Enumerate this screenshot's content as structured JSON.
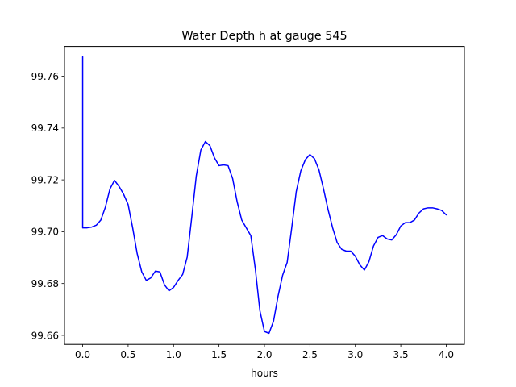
{
  "chart_data": {
    "type": "line",
    "title": "Water Depth h at gauge 545",
    "xlabel": "hours",
    "ylabel": "",
    "xlim": [
      -0.2,
      4.2
    ],
    "ylim": [
      99.6565,
      99.7715
    ],
    "xticks": [
      0.0,
      0.5,
      1.0,
      1.5,
      2.0,
      2.5,
      3.0,
      3.5,
      4.0
    ],
    "xtick_labels": [
      "0.0",
      "0.5",
      "1.0",
      "1.5",
      "2.0",
      "2.5",
      "3.0",
      "3.5",
      "4.0"
    ],
    "yticks": [
      99.66,
      99.68,
      99.7,
      99.72,
      99.74,
      99.76
    ],
    "ytick_labels": [
      "99.66",
      "99.68",
      "99.70",
      "99.72",
      "99.74",
      "99.76"
    ],
    "grid": false,
    "legend": "none",
    "series": [
      {
        "color": "#0000ff",
        "x": [
          0.0,
          0.0,
          0.0,
          0.05,
          0.1,
          0.15,
          0.2,
          0.25,
          0.3,
          0.35,
          0.4,
          0.45,
          0.5,
          0.55,
          0.6,
          0.65,
          0.7,
          0.75,
          0.8,
          0.85,
          0.9,
          0.95,
          1.0,
          1.05,
          1.1,
          1.15,
          1.2,
          1.25,
          1.3,
          1.35,
          1.4,
          1.45,
          1.5,
          1.55,
          1.6,
          1.65,
          1.7,
          1.75,
          1.8,
          1.85,
          1.9,
          1.95,
          2.0,
          2.05,
          2.1,
          2.15,
          2.2,
          2.25,
          2.3,
          2.35,
          2.4,
          2.45,
          2.5,
          2.55,
          2.6,
          2.65,
          2.7,
          2.75,
          2.8,
          2.85,
          2.9,
          2.95,
          3.0,
          3.05,
          3.1,
          3.15,
          3.2,
          3.25,
          3.3,
          3.35,
          3.4,
          3.45,
          3.5,
          3.55,
          3.6,
          3.65,
          3.7,
          3.75,
          3.8,
          3.85,
          3.9,
          3.95,
          4.0
        ],
        "y": [
          99.7675,
          99.7675,
          99.7015,
          99.7015,
          99.7018,
          99.7025,
          99.7045,
          99.7095,
          99.7165,
          99.7198,
          99.7175,
          99.7145,
          99.7105,
          99.7015,
          99.6915,
          99.6845,
          99.6812,
          99.6822,
          99.6848,
          99.6845,
          99.6795,
          99.6772,
          99.6785,
          99.6812,
          99.6835,
          99.6902,
          99.7055,
          99.7215,
          99.7315,
          99.7348,
          99.7332,
          99.7285,
          99.7255,
          99.7258,
          99.7255,
          99.7205,
          99.7115,
          99.7045,
          99.7015,
          99.6985,
          99.6855,
          99.6695,
          99.6615,
          99.6608,
          99.6655,
          99.6752,
          99.6832,
          99.6882,
          99.7015,
          99.7155,
          99.7235,
          99.7278,
          99.7298,
          99.7282,
          99.7238,
          99.7165,
          99.7085,
          99.7015,
          99.6958,
          99.6932,
          99.6925,
          99.6925,
          99.6905,
          99.6872,
          99.6852,
          99.6885,
          99.6945,
          99.6978,
          99.6985,
          99.6972,
          99.6968,
          99.6988,
          99.7022,
          99.7035,
          99.7035,
          99.7045,
          99.7072,
          99.7088,
          99.7092,
          99.7092,
          99.7088,
          99.7082,
          99.7065
        ]
      }
    ]
  }
}
